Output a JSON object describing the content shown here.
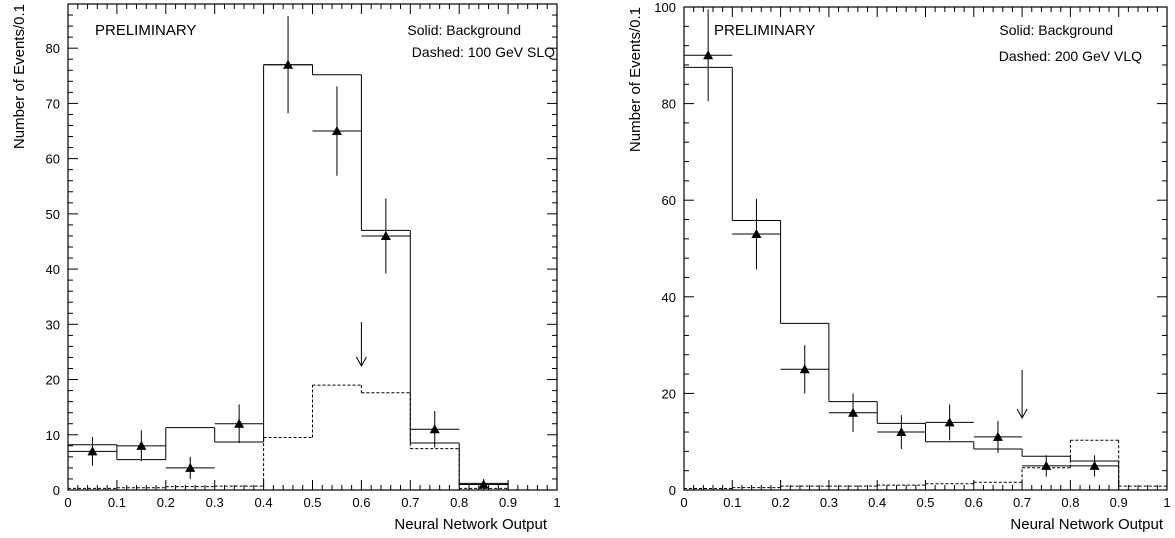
{
  "chart_data": [
    {
      "type": "histogram",
      "xlabel": "Neural Network Output",
      "ylabel": "Number of Events/0.1",
      "xlim": [
        0,
        1
      ],
      "ylim": [
        0,
        88
      ],
      "xticks": [
        0,
        0.1,
        0.2,
        0.3,
        0.4,
        0.5,
        0.6,
        0.7,
        0.8,
        0.9,
        1
      ],
      "xticklabels": [
        "0",
        "0.1",
        "0.2",
        "0.3",
        "0.4",
        "0.5",
        "0.6",
        "0.7",
        "0.8",
        "0.9",
        "1"
      ],
      "yticks": [
        0,
        10,
        20,
        30,
        40,
        50,
        60,
        70,
        80
      ],
      "yticklabels": [
        "0",
        "10",
        "20",
        "30",
        "40",
        "50",
        "60",
        "70",
        "80"
      ],
      "bin_edges": [
        0,
        0.1,
        0.2,
        0.3,
        0.4,
        0.5,
        0.6,
        0.7,
        0.8,
        0.9
      ],
      "annotations": [
        "PRELIMINARY",
        "Solid: Background",
        "Dashed: 100 GeV SLQ"
      ],
      "series": [
        {
          "name": "Background",
          "style": "solid",
          "values": [
            8.2,
            5.5,
            11.3,
            8.7,
            77,
            75.2,
            47,
            8.5,
            1.2
          ]
        },
        {
          "name": "100 GeV SLQ",
          "style": "dashed",
          "values": [
            0.3,
            0.4,
            0.6,
            0.7,
            9.5,
            19,
            17.6,
            7.5,
            0.3
          ]
        },
        {
          "name": "Data",
          "style": "points",
          "x": [
            0.05,
            0.15,
            0.25,
            0.35,
            0.45,
            0.55,
            0.65,
            0.75,
            0.85
          ],
          "y": [
            7,
            8,
            4,
            12,
            77,
            65,
            46,
            11,
            1
          ],
          "yerr": [
            2.6,
            2.8,
            2,
            3.5,
            8.8,
            8.1,
            6.8,
            3.3,
            1
          ]
        }
      ],
      "cut_arrow_x": 0.6
    },
    {
      "type": "histogram",
      "xlabel": "Neural Network Output",
      "ylabel": "Number of Events/0.1",
      "xlim": [
        0,
        1
      ],
      "ylim": [
        0,
        100
      ],
      "xticks": [
        0,
        0.1,
        0.2,
        0.3,
        0.4,
        0.5,
        0.6,
        0.7,
        0.8,
        0.9,
        1
      ],
      "xticklabels": [
        "0",
        "0.1",
        "0.2",
        "0.3",
        "0.4",
        "0.5",
        "0.6",
        "0.7",
        "0.8",
        "0.9",
        "1"
      ],
      "yticks": [
        0,
        20,
        40,
        60,
        80,
        100
      ],
      "yticklabels": [
        "0",
        "20",
        "40",
        "60",
        "80",
        "100"
      ],
      "bin_edges": [
        0,
        0.1,
        0.2,
        0.3,
        0.4,
        0.5,
        0.6,
        0.7,
        0.8,
        0.9,
        1
      ],
      "annotations": [
        "PRELIMINARY",
        "Solid: Background",
        "Dashed: 200 GeV VLQ"
      ],
      "series": [
        {
          "name": "Background",
          "style": "solid",
          "values": [
            87.5,
            55.8,
            34.5,
            18.3,
            13.8,
            10,
            8.5,
            7,
            6,
            0
          ]
        },
        {
          "name": "200 GeV VLQ",
          "style": "dashed",
          "values": [
            0.3,
            0.5,
            0.8,
            0.8,
            1,
            1.3,
            1.6,
            4.6,
            10.3,
            0.8
          ]
        },
        {
          "name": "Data",
          "style": "points",
          "x": [
            0.05,
            0.15,
            0.25,
            0.35,
            0.45,
            0.55,
            0.65,
            0.75,
            0.85
          ],
          "y": [
            90,
            53,
            25,
            16,
            12,
            14,
            11,
            5,
            5
          ],
          "yerr": [
            9.5,
            7.3,
            5,
            4,
            3.5,
            3.7,
            3.3,
            2.2,
            2.2
          ]
        }
      ],
      "cut_arrow_x": 0.7
    }
  ]
}
